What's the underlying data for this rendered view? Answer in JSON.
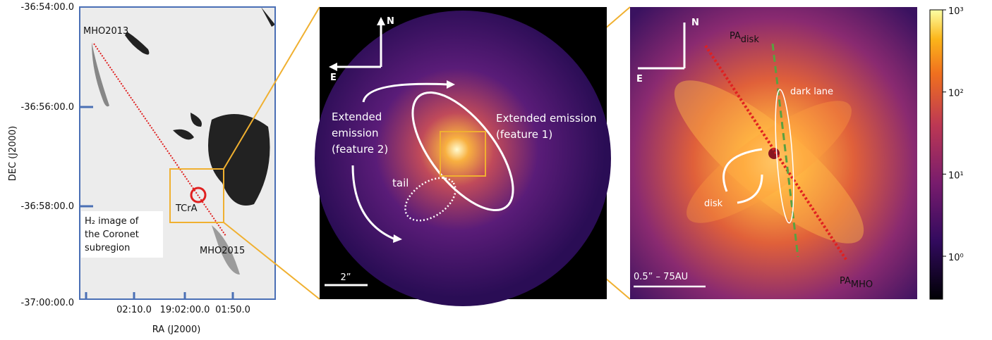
{
  "left_panel": {
    "labels": {
      "mho2013": "MHO2013",
      "tcra": "TCrA",
      "mho2015": "MHO2015"
    },
    "caption": [
      "H₂ image of",
      "the Coronet",
      "subregion"
    ],
    "y_axis": {
      "title": "DEC (J2000)",
      "ticks": [
        "-36:54:00.0",
        "-36:56:00.0",
        "-36:58:00.0",
        "-37:00:00.0"
      ]
    },
    "x_axis": {
      "title": "RA (J2000)",
      "ticks": [
        "02:10.0",
        "19:02:00.0",
        "01:50.0"
      ]
    }
  },
  "middle_panel": {
    "compass": {
      "north": "N",
      "east": "E"
    },
    "feature_1": [
      "Extended emission",
      "(feature 1)"
    ],
    "feature_2": [
      "Extended",
      "emission",
      "(feature 2)"
    ],
    "tail": "tail",
    "scale_bar": "2”"
  },
  "right_panel": {
    "compass": {
      "north": "N",
      "east": "E"
    },
    "pa_disk": {
      "base": "PA",
      "sub": "disk"
    },
    "dark_lane": "dark lane",
    "disk": "disk",
    "pa_mho": {
      "base": "PA",
      "sub": "MHO"
    },
    "scale_bar": "0.5” – 75AU"
  },
  "colorbar": {
    "scale": "log",
    "range": [
      0.3,
      1000
    ],
    "ticks": [
      {
        "value": 1000,
        "label": "10³"
      },
      {
        "value": 100,
        "label": "10²"
      },
      {
        "value": 10,
        "label": "10¹"
      },
      {
        "value": 1,
        "label": "10⁰"
      }
    ]
  }
}
